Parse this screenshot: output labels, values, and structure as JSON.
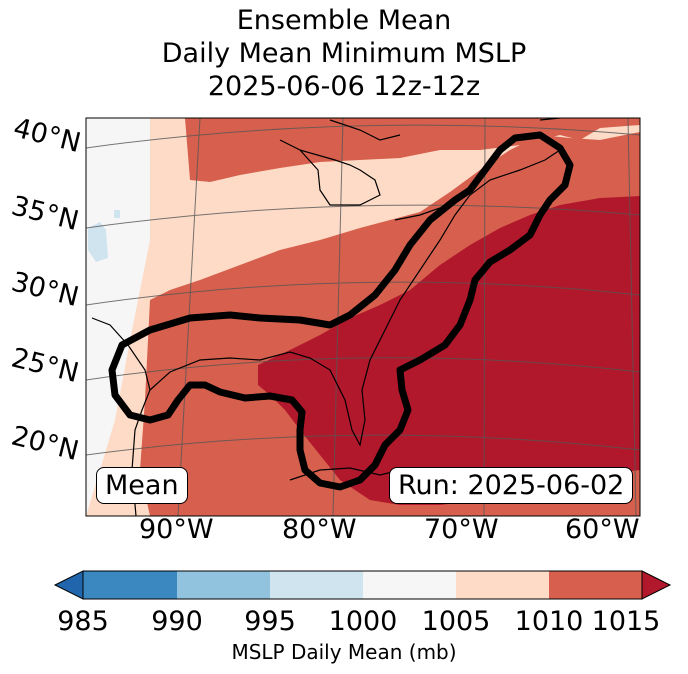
{
  "title": {
    "line1": "Ensemble Mean",
    "line2": "Daily Mean Minimum MSLP",
    "line3": "2025-06-06 12z-12z"
  },
  "map": {
    "lat_labels": [
      "40°N",
      "35°N",
      "30°N",
      "25°N",
      "20°N"
    ],
    "lon_labels": [
      "90°W",
      "80°W",
      "70°W",
      "60°W"
    ],
    "mean_box": "Mean",
    "run_box": "Run: 2025-06-02",
    "colors": {
      "c985_990": "#3b87bf",
      "c990_995": "#91c3de",
      "c995_1000": "#d0e4f0",
      "c1000_1005": "#f6f6f6",
      "c1005_1010": "#fddbc7",
      "c1010_1015": "#d6604d",
      "c_above_1015": "#b2182b",
      "c_below_985": "#2166ac"
    }
  },
  "colorbar": {
    "ticks": [
      "985",
      "990",
      "995",
      "1000",
      "1005",
      "1010",
      "1015"
    ],
    "label": "MSLP Daily Mean (mb)"
  }
}
